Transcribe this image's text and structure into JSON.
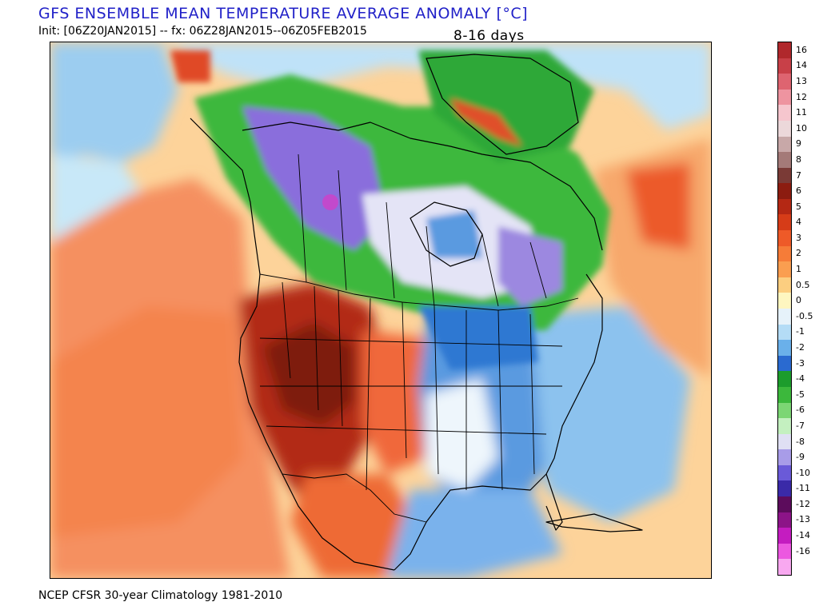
{
  "header": {
    "title": "GFS ENSEMBLE MEAN TEMPERATURE AVERAGE ANOMALY [°C]",
    "init_line": "Init: [06Z20JAN2015] -- fx: 06Z28JAN2015--06Z05FEB2015",
    "period": "8-16 days"
  },
  "footer": {
    "note": "NCEP CFSR 30-year Climatology 1981-2010"
  },
  "map": {
    "region": "North America",
    "variable": "temperature anomaly",
    "anomaly_areas": [
      {
        "area": "western-us",
        "sign": "warm",
        "color": "#a8281c"
      },
      {
        "area": "great-basin-core",
        "sign": "warm",
        "color": "#7a1810"
      },
      {
        "area": "eastern-pacific",
        "sign": "warm",
        "color": "#f07a3c"
      },
      {
        "area": "north-atlantic-east-of-newfoundland",
        "sign": "warm",
        "color": "#f0683a"
      },
      {
        "area": "western-canada",
        "sign": "cold",
        "color": "#3cb83c"
      },
      {
        "area": "northern-canada",
        "sign": "cold",
        "color": "#8a6edc"
      },
      {
        "area": "hudson-bay-east",
        "sign": "cold",
        "color": "#9c88e0"
      },
      {
        "area": "eastern-us",
        "sign": "cold",
        "color": "#3a7ad0"
      },
      {
        "area": "greenland",
        "sign": "cold",
        "color": "#2ea838"
      },
      {
        "area": "gulf-of-mexico",
        "sign": "cold",
        "color": "#7ab2ec"
      }
    ]
  },
  "colorbar": {
    "entries": [
      {
        "label": "16",
        "color": "#b0282c"
      },
      {
        "label": "14",
        "color": "#c84048"
      },
      {
        "label": "13",
        "color": "#de6470"
      },
      {
        "label": "12",
        "color": "#ee94a0"
      },
      {
        "label": "11",
        "color": "#f6c6ce"
      },
      {
        "label": "10",
        "color": "#ecd8da"
      },
      {
        "label": "9",
        "color": "#c8a8a8"
      },
      {
        "label": "8",
        "color": "#a47a78"
      },
      {
        "label": "7",
        "color": "#7a3a36"
      },
      {
        "label": "6",
        "color": "#8c1c10"
      },
      {
        "label": "5",
        "color": "#b42814"
      },
      {
        "label": "4",
        "color": "#d63c18"
      },
      {
        "label": "3",
        "color": "#ee5a28"
      },
      {
        "label": "2",
        "color": "#f67c38"
      },
      {
        "label": "1",
        "color": "#fa9e50"
      },
      {
        "label": "0.5",
        "color": "#fcce80"
      },
      {
        "label": "0",
        "color": "#fef6c0"
      },
      {
        "label": "-0.5",
        "color": "#e6f2fa"
      },
      {
        "label": "-1",
        "color": "#b4dcf6"
      },
      {
        "label": "-2",
        "color": "#6ab0ea"
      },
      {
        "label": "-3",
        "color": "#2a6ad0"
      },
      {
        "label": "-4",
        "color": "#1c9c2c"
      },
      {
        "label": "-5",
        "color": "#3cb83c"
      },
      {
        "label": "-6",
        "color": "#7cd674"
      },
      {
        "label": "-7",
        "color": "#c4f0c0"
      },
      {
        "label": "-8",
        "color": "#e0e0f4"
      },
      {
        "label": "-9",
        "color": "#a89ce8"
      },
      {
        "label": "-10",
        "color": "#6a5ad8"
      },
      {
        "label": "-11",
        "color": "#3a2aa8"
      },
      {
        "label": "-12",
        "color": "#5c0c5c"
      },
      {
        "label": "-13",
        "color": "#8c1488"
      },
      {
        "label": "-14",
        "color": "#c41cc0"
      },
      {
        "label": "-16",
        "color": "#ec58e0"
      },
      {
        "label": "",
        "color": "#f8a8f0"
      }
    ]
  }
}
